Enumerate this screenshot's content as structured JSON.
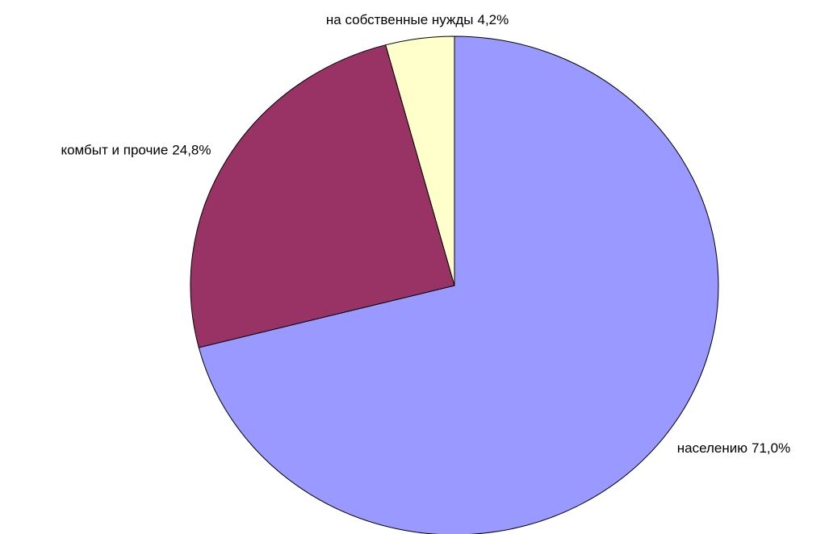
{
  "chart_data": {
    "type": "pie",
    "categories": [
      "населению",
      "комбыт и прочие",
      "на собственные нужды"
    ],
    "values": [
      71.0,
      24.8,
      4.2
    ],
    "value_labels": [
      "71,0%",
      "24,8%",
      "4,2%"
    ],
    "colors": [
      "#9999ff",
      "#993366",
      "#ffffcc"
    ]
  }
}
